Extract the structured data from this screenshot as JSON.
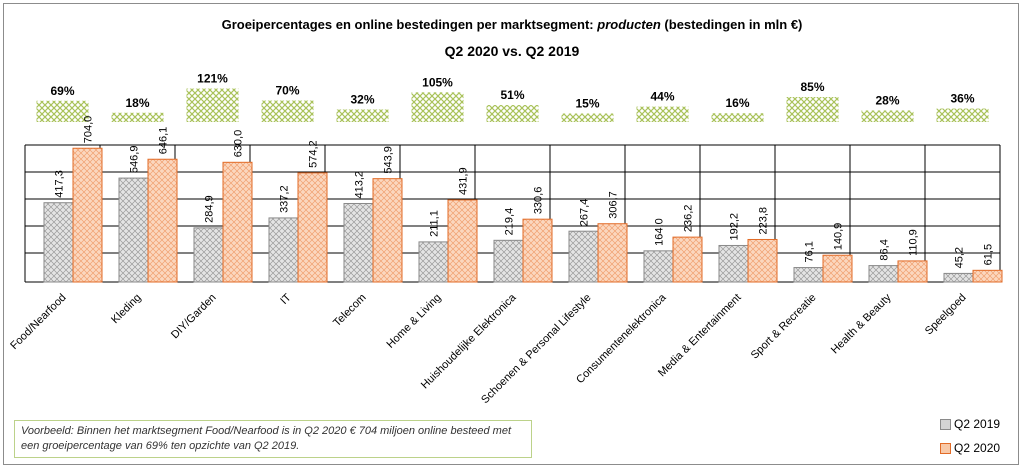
{
  "title_main": "Groeipercentages en online bestedingen per marktsegment: ",
  "title_italic": "producten",
  "title_suffix": " (bestedingen in mln €)",
  "subtitle": "Q2 2020 vs. Q2 2019",
  "note": "Voorbeeld: Binnen het marktsegment Food/Nearfood is in Q2 2020 € 704 miljoen online besteed met een groeipercentage van 69% ten opzichte van Q2 2019.",
  "colors": {
    "q2019_fill": "#d4d4d4",
    "q2019_stroke": "#8a8a8a",
    "q2020_fill": "#f8c9a8",
    "q2020_stroke": "#e26b27",
    "growth": "#a9c25a"
  },
  "chart_data": {
    "type": "bar",
    "categories": [
      "Food/Nearfood",
      "Kleding",
      "DIY/Garden",
      "IT",
      "Telecom",
      "Home & Living",
      "Huishoudelijke Elektronica",
      "Schoenen & Personal Lifestyle",
      "Consumentenelektronica",
      "Media & Entertainment",
      "Sport & Recreatie",
      "Health & Beauty",
      "Speelgoed"
    ],
    "series": [
      {
        "name": "Q2 2019",
        "values": [
          417.3,
          546.9,
          284.9,
          337.2,
          413.2,
          211.1,
          219.4,
          267.4,
          164.0,
          192.2,
          76.1,
          86.4,
          45.2
        ],
        "labels": [
          "417,3",
          "546,9",
          "284,9",
          "337,2",
          "413,2",
          "211,1",
          "219,4",
          "267,4",
          "164,0",
          "192,2",
          "76,1",
          "86,4",
          "45,2"
        ]
      },
      {
        "name": "Q2 2020",
        "values": [
          704.0,
          646.1,
          630.0,
          574.2,
          543.9,
          431.9,
          330.6,
          306.7,
          236.2,
          223.8,
          140.9,
          110.9,
          61.5
        ],
        "labels": [
          "704,0",
          "646,1",
          "630,0",
          "574,2",
          "543,9",
          "431,9",
          "330,6",
          "306,7",
          "236,2",
          "223,8",
          "140,9",
          "110,9",
          "61,5"
        ]
      }
    ],
    "growth": {
      "values": [
        69,
        18,
        121,
        70,
        32,
        105,
        51,
        15,
        44,
        16,
        85,
        28,
        36
      ],
      "labels": [
        "69%",
        "18%",
        "121%",
        "70%",
        "32%",
        "105%",
        "51%",
        "15%",
        "44%",
        "16%",
        "85%",
        "28%",
        "36%"
      ]
    },
    "ylim": [
      0,
      800
    ],
    "grid": true,
    "legend": "bottom-right"
  }
}
